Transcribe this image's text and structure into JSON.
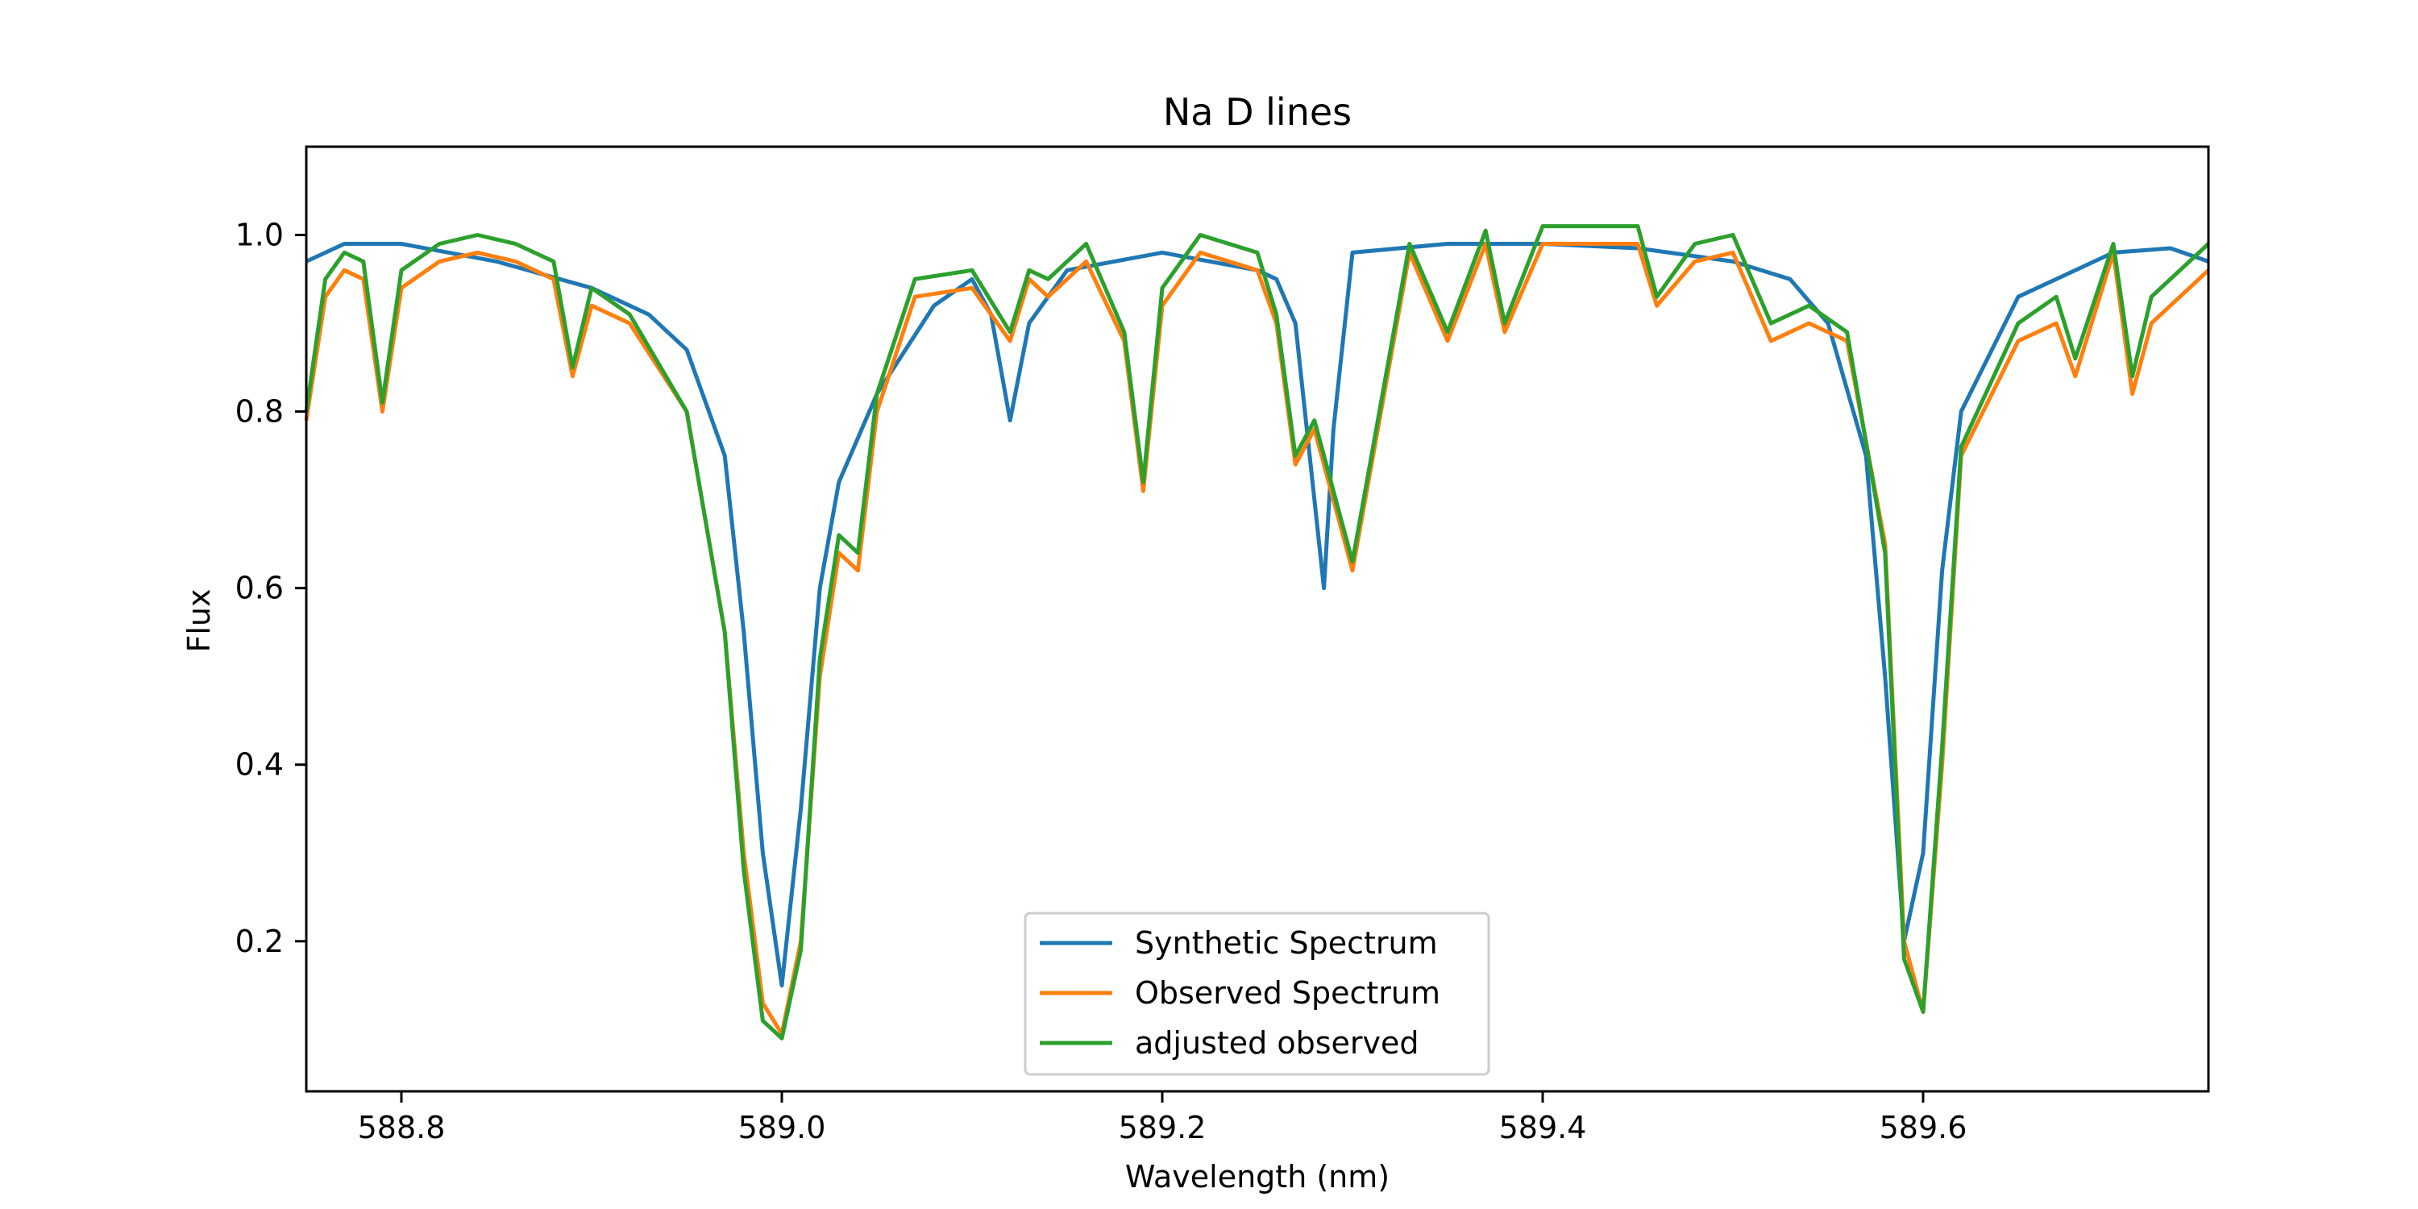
{
  "chart_data": {
    "type": "line",
    "title": "Na D lines",
    "xlabel": "Wavelength (nm)",
    "ylabel": "Flux",
    "xlim": [
      588.75,
      589.75
    ],
    "ylim": [
      0.03,
      1.1
    ],
    "xticks": [
      588.8,
      589.0,
      589.2,
      589.4,
      589.6
    ],
    "xtick_labels": [
      "588.8",
      "589.0",
      "589.2",
      "589.4",
      "589.6"
    ],
    "yticks": [
      0.2,
      0.4,
      0.6,
      0.8,
      1.0
    ],
    "ytick_labels": [
      "0.2",
      "0.4",
      "0.6",
      "0.8",
      "1.0"
    ],
    "grid": false,
    "legend_position": "bottom-center",
    "series": [
      {
        "name": "Synthetic Spectrum",
        "color": "#1f77b4",
        "x": [
          588.75,
          588.77,
          588.8,
          588.85,
          588.9,
          588.93,
          588.95,
          588.97,
          588.98,
          588.99,
          589.0,
          589.01,
          589.02,
          589.03,
          589.05,
          589.08,
          589.1,
          589.11,
          589.12,
          589.13,
          589.15,
          589.2,
          589.25,
          589.26,
          589.27,
          589.28,
          589.285,
          589.29,
          589.3,
          589.35,
          589.4,
          589.45,
          589.5,
          589.53,
          589.55,
          589.57,
          589.58,
          589.59,
          589.6,
          589.61,
          589.62,
          589.65,
          589.7,
          589.73,
          589.75
        ],
        "y": [
          0.97,
          0.99,
          0.99,
          0.97,
          0.94,
          0.91,
          0.87,
          0.75,
          0.55,
          0.3,
          0.15,
          0.35,
          0.6,
          0.72,
          0.82,
          0.92,
          0.95,
          0.91,
          0.79,
          0.9,
          0.96,
          0.98,
          0.96,
          0.95,
          0.9,
          0.7,
          0.6,
          0.78,
          0.98,
          0.99,
          0.99,
          0.985,
          0.97,
          0.95,
          0.9,
          0.75,
          0.5,
          0.2,
          0.3,
          0.62,
          0.8,
          0.93,
          0.98,
          0.985,
          0.97
        ]
      },
      {
        "name": "Observed Spectrum",
        "color": "#ff7f0e",
        "x": [
          588.75,
          588.76,
          588.77,
          588.78,
          588.79,
          588.8,
          588.82,
          588.84,
          588.86,
          588.88,
          588.89,
          588.9,
          588.92,
          588.95,
          588.97,
          588.98,
          588.99,
          589.0,
          589.01,
          589.02,
          589.03,
          589.04,
          589.05,
          589.07,
          589.1,
          589.12,
          589.13,
          589.14,
          589.16,
          589.18,
          589.19,
          589.2,
          589.22,
          589.25,
          589.26,
          589.27,
          589.28,
          589.3,
          589.33,
          589.35,
          589.37,
          589.38,
          589.4,
          589.45,
          589.46,
          589.48,
          589.5,
          589.52,
          589.54,
          589.56,
          589.58,
          589.59,
          589.6,
          589.61,
          589.62,
          589.65,
          589.67,
          589.68,
          589.7,
          589.71,
          589.72,
          589.75
        ],
        "y": [
          0.79,
          0.93,
          0.96,
          0.95,
          0.8,
          0.94,
          0.97,
          0.98,
          0.97,
          0.95,
          0.84,
          0.92,
          0.9,
          0.8,
          0.55,
          0.3,
          0.13,
          0.095,
          0.2,
          0.5,
          0.64,
          0.62,
          0.8,
          0.93,
          0.94,
          0.88,
          0.95,
          0.93,
          0.97,
          0.88,
          0.71,
          0.92,
          0.98,
          0.96,
          0.9,
          0.74,
          0.78,
          0.62,
          0.98,
          0.88,
          0.99,
          0.89,
          0.99,
          0.99,
          0.92,
          0.97,
          0.98,
          0.88,
          0.9,
          0.88,
          0.65,
          0.2,
          0.12,
          0.4,
          0.75,
          0.88,
          0.9,
          0.84,
          0.98,
          0.82,
          0.9,
          0.96
        ]
      },
      {
        "name": "adjusted observed",
        "color": "#2ca02c",
        "x": [
          588.75,
          588.76,
          588.77,
          588.78,
          588.79,
          588.8,
          588.82,
          588.84,
          588.86,
          588.88,
          588.89,
          588.9,
          588.92,
          588.95,
          588.97,
          588.98,
          588.99,
          589.0,
          589.01,
          589.02,
          589.03,
          589.04,
          589.05,
          589.07,
          589.1,
          589.12,
          589.13,
          589.14,
          589.16,
          589.18,
          589.19,
          589.2,
          589.22,
          589.25,
          589.26,
          589.27,
          589.28,
          589.3,
          589.33,
          589.35,
          589.37,
          589.38,
          589.4,
          589.45,
          589.46,
          589.48,
          589.5,
          589.52,
          589.54,
          589.56,
          589.58,
          589.59,
          589.6,
          589.61,
          589.62,
          589.65,
          589.67,
          589.68,
          589.7,
          589.71,
          589.72,
          589.75
        ],
        "y": [
          0.8,
          0.95,
          0.98,
          0.97,
          0.81,
          0.96,
          0.99,
          1.0,
          0.99,
          0.97,
          0.85,
          0.94,
          0.91,
          0.8,
          0.55,
          0.28,
          0.11,
          0.09,
          0.19,
          0.52,
          0.66,
          0.64,
          0.82,
          0.95,
          0.96,
          0.89,
          0.96,
          0.95,
          0.99,
          0.89,
          0.72,
          0.94,
          1.0,
          0.98,
          0.91,
          0.75,
          0.79,
          0.63,
          0.99,
          0.89,
          1.005,
          0.9,
          1.01,
          1.01,
          0.93,
          0.99,
          1.0,
          0.9,
          0.92,
          0.89,
          0.64,
          0.18,
          0.12,
          0.42,
          0.76,
          0.9,
          0.93,
          0.86,
          0.99,
          0.84,
          0.93,
          0.99
        ]
      }
    ]
  }
}
